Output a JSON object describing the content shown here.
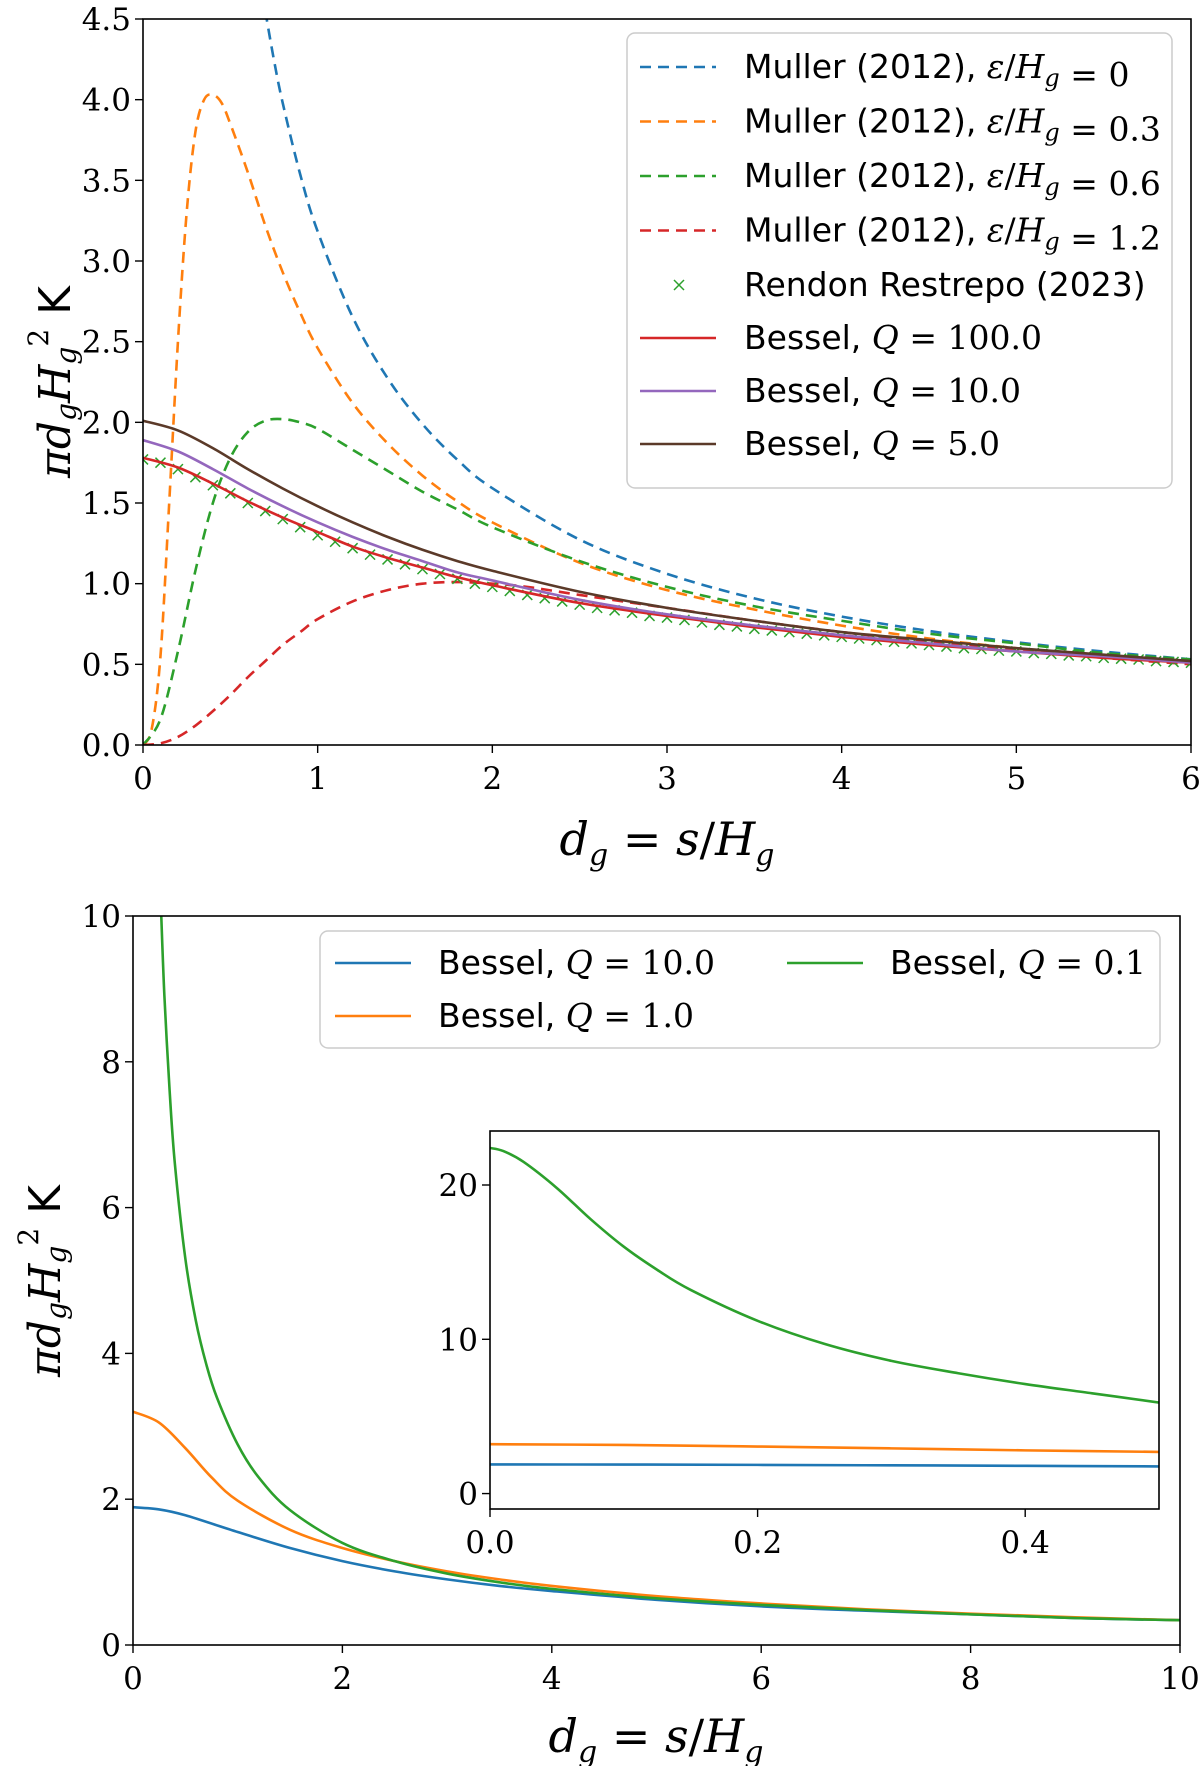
{
  "chart_data": [
    {
      "type": "line",
      "panel": "top",
      "xlabel": "d_g = s/H_g",
      "ylabel": "πd_gH_g² K",
      "xlim": [
        0,
        6
      ],
      "ylim": [
        0,
        4.5
      ],
      "xticks": [
        "0",
        "1",
        "2",
        "3",
        "4",
        "5",
        "6"
      ],
      "yticks": [
        "0.0",
        "0.5",
        "1.0",
        "1.5",
        "2.0",
        "2.5",
        "3.0",
        "3.5",
        "4.0",
        "4.5"
      ],
      "legend_position": "top-right",
      "series": [
        {
          "name": "Muller (2012), ε/H_g = 0",
          "color": "#1f77b4",
          "style": "dashed",
          "x": [
            0.7,
            0.75,
            0.8,
            0.9,
            1.0,
            1.2,
            1.4,
            1.6,
            1.8,
            2.0,
            2.5,
            3.0,
            3.5,
            4.0,
            4.5,
            5.0,
            5.5,
            6.0
          ],
          "y": [
            4.55,
            4.244,
            3.979,
            3.537,
            3.183,
            2.653,
            2.274,
            1.989,
            1.768,
            1.592,
            1.273,
            1.061,
            0.909,
            0.796,
            0.707,
            0.637,
            0.579,
            0.531
          ]
        },
        {
          "name": "Muller (2012), ε/H_g = 0.3",
          "color": "#ff7f0e",
          "style": "dashed",
          "x": [
            0.0,
            0.05,
            0.1,
            0.15,
            0.2,
            0.25,
            0.3,
            0.35,
            0.4,
            0.45,
            0.5,
            0.6,
            0.7,
            0.8,
            0.9,
            1.0,
            1.2,
            1.4,
            1.6,
            1.8,
            2.0,
            2.5,
            3.0,
            3.5,
            4.0,
            4.5,
            5.0,
            5.5,
            6.0
          ],
          "y": [
            0.0,
            0.1,
            0.55,
            1.5,
            2.5,
            3.3,
            3.8,
            4.0,
            4.03,
            3.98,
            3.85,
            3.55,
            3.22,
            2.93,
            2.68,
            2.46,
            2.12,
            1.87,
            1.67,
            1.51,
            1.38,
            1.13,
            0.96,
            0.84,
            0.74,
            0.66,
            0.6,
            0.55,
            0.51
          ]
        },
        {
          "name": "Muller (2012), ε/H_g = 0.6",
          "color": "#2ca02c",
          "style": "dashed",
          "x": [
            0.0,
            0.1,
            0.2,
            0.3,
            0.4,
            0.5,
            0.6,
            0.7,
            0.8,
            0.9,
            1.0,
            1.2,
            1.4,
            1.6,
            1.8,
            2.0,
            2.5,
            3.0,
            3.5,
            4.0,
            4.5,
            5.0,
            5.5,
            6.0
          ],
          "y": [
            0.0,
            0.16,
            0.58,
            1.08,
            1.5,
            1.78,
            1.94,
            2.01,
            2.02,
            2.0,
            1.96,
            1.83,
            1.7,
            1.57,
            1.46,
            1.35,
            1.14,
            0.98,
            0.86,
            0.77,
            0.69,
            0.63,
            0.57,
            0.53
          ]
        },
        {
          "name": "Muller (2012), ε/H_g = 1.2",
          "color": "#d62728",
          "style": "dashed",
          "x": [
            0.0,
            0.1,
            0.2,
            0.3,
            0.4,
            0.5,
            0.6,
            0.7,
            0.8,
            0.9,
            1.0,
            1.2,
            1.4,
            1.6,
            1.8,
            2.0,
            2.2,
            2.5,
            3.0,
            3.5,
            4.0,
            4.5,
            5.0,
            5.5,
            6.0
          ],
          "y": [
            0.0,
            0.01,
            0.05,
            0.12,
            0.21,
            0.31,
            0.42,
            0.52,
            0.62,
            0.7,
            0.78,
            0.89,
            0.96,
            1.0,
            1.01,
            1.0,
            0.98,
            0.93,
            0.85,
            0.77,
            0.7,
            0.64,
            0.59,
            0.54,
            0.5
          ]
        },
        {
          "name": "Rendon Restrepo (2023)",
          "color": "#2ca02c",
          "style": "markers",
          "marker": "x",
          "x": [
            0.0,
            0.1,
            0.2,
            0.3,
            0.4,
            0.5,
            0.6,
            0.7,
            0.8,
            0.9,
            1.0,
            1.1,
            1.2,
            1.3,
            1.4,
            1.5,
            1.6,
            1.7,
            1.8,
            1.9,
            2.0,
            2.1,
            2.2,
            2.3,
            2.4,
            2.5,
            2.6,
            2.7,
            2.8,
            2.9,
            3.0,
            3.1,
            3.2,
            3.3,
            3.4,
            3.5,
            3.6,
            3.7,
            3.8,
            3.9,
            4.0,
            4.1,
            4.2,
            4.3,
            4.4,
            4.5,
            4.6,
            4.7,
            4.8,
            4.9,
            5.0,
            5.1,
            5.2,
            5.3,
            5.4,
            5.5,
            5.6,
            5.7,
            5.8,
            5.9,
            6.0
          ],
          "y": [
            1.77,
            1.75,
            1.71,
            1.66,
            1.61,
            1.56,
            1.5,
            1.45,
            1.4,
            1.35,
            1.3,
            1.26,
            1.22,
            1.18,
            1.15,
            1.12,
            1.09,
            1.06,
            1.03,
            1.0,
            0.98,
            0.955,
            0.93,
            0.91,
            0.89,
            0.87,
            0.85,
            0.835,
            0.82,
            0.8,
            0.79,
            0.775,
            0.76,
            0.745,
            0.735,
            0.72,
            0.71,
            0.7,
            0.69,
            0.68,
            0.67,
            0.66,
            0.65,
            0.64,
            0.63,
            0.62,
            0.61,
            0.6,
            0.595,
            0.585,
            0.58,
            0.57,
            0.565,
            0.555,
            0.55,
            0.54,
            0.535,
            0.53,
            0.52,
            0.515,
            0.51
          ]
        },
        {
          "name": "Bessel, Q = 100.0",
          "color": "#d62728",
          "style": "solid",
          "x": [
            0.0,
            0.2,
            0.4,
            0.6,
            0.8,
            1.0,
            1.2,
            1.4,
            1.6,
            1.8,
            2.0,
            2.5,
            3.0,
            3.5,
            4.0,
            4.5,
            5.0,
            5.5,
            6.0
          ],
          "y": [
            1.78,
            1.72,
            1.62,
            1.51,
            1.41,
            1.32,
            1.23,
            1.16,
            1.1,
            1.04,
            0.99,
            0.88,
            0.8,
            0.73,
            0.67,
            0.62,
            0.58,
            0.54,
            0.51
          ]
        },
        {
          "name": "Bessel, Q = 10.0",
          "color": "#9467bd",
          "style": "solid",
          "x": [
            0.0,
            0.2,
            0.4,
            0.6,
            0.8,
            1.0,
            1.2,
            1.4,
            1.6,
            1.8,
            2.0,
            2.5,
            3.0,
            3.5,
            4.0,
            4.5,
            5.0,
            5.5,
            6.0
          ],
          "y": [
            1.89,
            1.82,
            1.71,
            1.59,
            1.48,
            1.38,
            1.29,
            1.21,
            1.14,
            1.07,
            1.02,
            0.9,
            0.81,
            0.74,
            0.68,
            0.63,
            0.58,
            0.55,
            0.51
          ]
        },
        {
          "name": "Bessel, Q = 5.0",
          "color": "#5b3a29",
          "style": "solid",
          "x": [
            0.0,
            0.2,
            0.4,
            0.6,
            0.8,
            1.0,
            1.2,
            1.4,
            1.6,
            1.8,
            2.0,
            2.5,
            3.0,
            3.5,
            4.0,
            4.5,
            5.0,
            5.5,
            6.0
          ],
          "y": [
            2.01,
            1.95,
            1.84,
            1.71,
            1.59,
            1.48,
            1.38,
            1.29,
            1.21,
            1.14,
            1.08,
            0.95,
            0.85,
            0.77,
            0.7,
            0.65,
            0.6,
            0.56,
            0.52
          ]
        }
      ],
      "legend": [
        {
          "label": "Muller (2012), ",
          "math": "ε/H_g = 0",
          "color": "#1f77b4",
          "style": "dashed"
        },
        {
          "label": "Muller (2012), ",
          "math": "ε/H_g = 0.3",
          "color": "#ff7f0e",
          "style": "dashed"
        },
        {
          "label": "Muller (2012), ",
          "math": "ε/H_g = 0.6",
          "color": "#2ca02c",
          "style": "dashed"
        },
        {
          "label": "Muller (2012), ",
          "math": "ε/H_g = 1.2",
          "color": "#d62728",
          "style": "dashed"
        },
        {
          "label": "Rendon Restrepo (2023)",
          "math": "",
          "color": "#2ca02c",
          "style": "markers"
        },
        {
          "label": "Bessel, ",
          "math": "Q = 100.0",
          "color": "#d62728",
          "style": "solid"
        },
        {
          "label": "Bessel, ",
          "math": "Q = 10.0",
          "color": "#9467bd",
          "style": "solid"
        },
        {
          "label": "Bessel, ",
          "math": "Q = 5.0",
          "color": "#5b3a29",
          "style": "solid"
        }
      ]
    },
    {
      "type": "line",
      "panel": "bottom",
      "xlabel": "d_g = s/H_g",
      "ylabel": "πd_gH_g² K",
      "xlim": [
        0,
        10
      ],
      "ylim": [
        0,
        10
      ],
      "xticks": [
        "0",
        "2",
        "4",
        "6",
        "8",
        "10"
      ],
      "yticks": [
        "0",
        "2",
        "4",
        "6",
        "8",
        "10"
      ],
      "legend_position": "top-right",
      "series": [
        {
          "name": "Bessel, Q = 10.0",
          "color": "#1f77b4",
          "style": "solid",
          "x": [
            0,
            0.25,
            0.5,
            1,
            1.5,
            2,
            2.5,
            3,
            3.5,
            4,
            5,
            6,
            7,
            8,
            9,
            10
          ],
          "y": [
            1.89,
            1.86,
            1.78,
            1.55,
            1.33,
            1.15,
            1.01,
            0.9,
            0.81,
            0.74,
            0.62,
            0.53,
            0.47,
            0.42,
            0.37,
            0.34
          ]
        },
        {
          "name": "Bessel, Q = 1.0",
          "color": "#ff7f0e",
          "style": "solid",
          "x": [
            0,
            0.25,
            0.5,
            0.75,
            1,
            1.5,
            2,
            2.5,
            3,
            3.5,
            4,
            5,
            6,
            7,
            8,
            9,
            10
          ],
          "y": [
            3.2,
            3.05,
            2.7,
            2.3,
            1.98,
            1.58,
            1.33,
            1.15,
            1.01,
            0.9,
            0.81,
            0.67,
            0.57,
            0.49,
            0.43,
            0.38,
            0.34
          ]
        },
        {
          "name": "Bessel, Q = 0.1",
          "color": "#2ca02c",
          "style": "solid",
          "x": [
            0.27,
            0.3,
            0.35,
            0.4,
            0.5,
            0.6,
            0.7,
            0.8,
            1.0,
            1.2,
            1.5,
            2,
            2.5,
            3,
            3.5,
            4,
            5,
            6,
            7,
            8,
            9,
            10
          ],
          "y": [
            10.0,
            8.9,
            7.6,
            6.6,
            5.3,
            4.45,
            3.85,
            3.4,
            2.75,
            2.3,
            1.85,
            1.4,
            1.15,
            0.98,
            0.86,
            0.77,
            0.64,
            0.55,
            0.48,
            0.42,
            0.37,
            0.34
          ]
        }
      ],
      "legend": [
        {
          "label": "Bessel, ",
          "math": "Q = 10.0",
          "color": "#1f77b4"
        },
        {
          "label": "Bessel, ",
          "math": "Q = 1.0",
          "color": "#ff7f0e"
        },
        {
          "label": "Bessel, ",
          "math": "Q = 0.1",
          "color": "#2ca02c"
        }
      ]
    },
    {
      "type": "line",
      "panel": "inset",
      "xlim": [
        0,
        0.5
      ],
      "ylim": [
        -1,
        23.5
      ],
      "xticks": [
        "0.0",
        "0.2",
        "0.4"
      ],
      "yticks": [
        "0",
        "10",
        "20"
      ],
      "series": [
        {
          "name": "Bessel, Q = 10.0",
          "color": "#1f77b4",
          "style": "solid",
          "x": [
            0,
            0.1,
            0.2,
            0.3,
            0.4,
            0.5
          ],
          "y": [
            1.89,
            1.88,
            1.86,
            1.83,
            1.8,
            1.76
          ]
        },
        {
          "name": "Bessel, Q = 1.0",
          "color": "#ff7f0e",
          "style": "solid",
          "x": [
            0,
            0.1,
            0.2,
            0.3,
            0.4,
            0.5
          ],
          "y": [
            3.2,
            3.15,
            3.05,
            2.93,
            2.8,
            2.7
          ]
        },
        {
          "name": "Bessel, Q = 0.1",
          "color": "#2ca02c",
          "style": "solid",
          "x": [
            0,
            0.01,
            0.025,
            0.05,
            0.075,
            0.1,
            0.125,
            0.15,
            0.2,
            0.25,
            0.3,
            0.35,
            0.4,
            0.45,
            0.5
          ],
          "y": [
            22.4,
            22.2,
            21.5,
            19.8,
            17.8,
            16.0,
            14.5,
            13.2,
            11.2,
            9.7,
            8.6,
            7.8,
            7.1,
            6.5,
            5.9
          ]
        }
      ]
    }
  ]
}
